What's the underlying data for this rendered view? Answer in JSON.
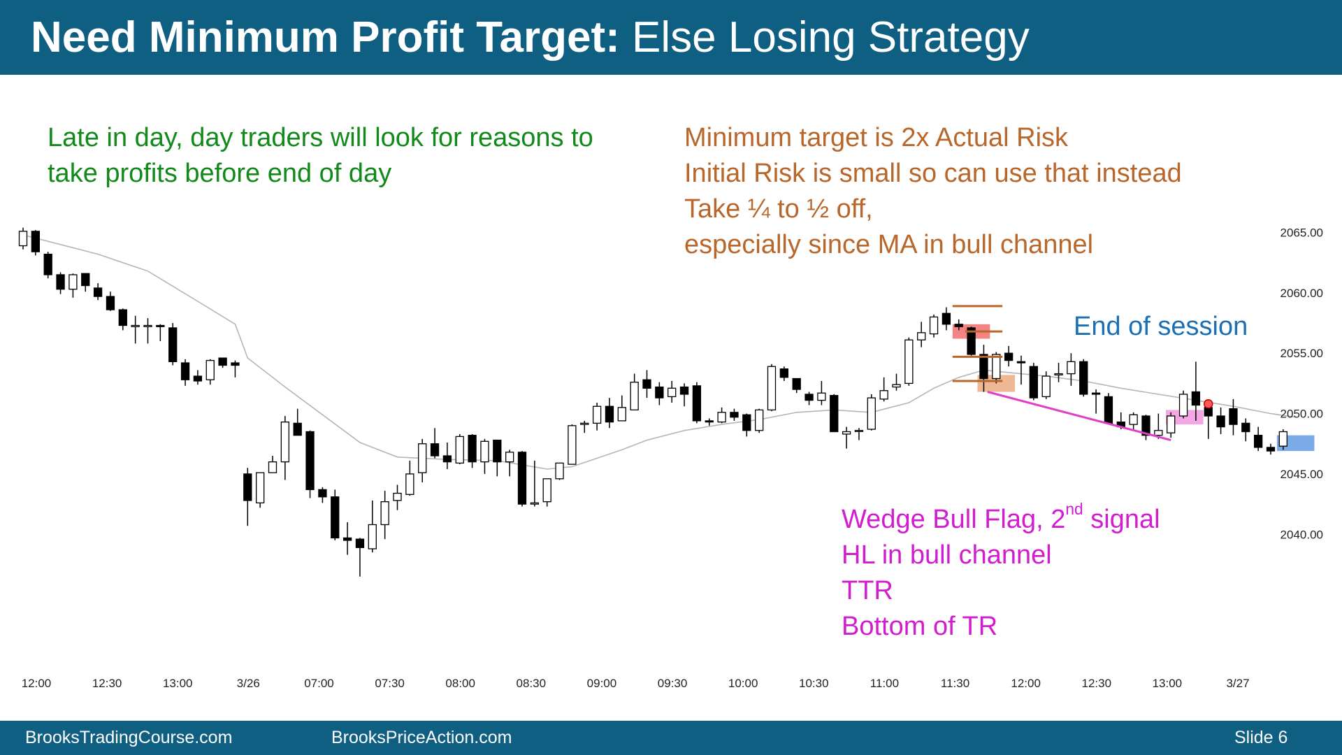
{
  "header": {
    "title_bold": "Need Minimum Profit Target:",
    "title_rest": "Else Losing Strategy"
  },
  "notes": {
    "green": [
      "Late in day, day traders will look for reasons to",
      "take profits before end of day"
    ],
    "brown": [
      "Minimum target is 2x Actual Risk",
      "Initial Risk is small so can use that instead",
      "Take ¼ to ½ off,",
      "especially since MA in bull channel"
    ],
    "blue": "End of session",
    "magenta": {
      "line1_pre": "Wedge Bull Flag, 2",
      "line1_sup": "nd",
      "line1_post": " signal",
      "lines": [
        "HL in bull channel",
        "TTR",
        "Bottom of TR"
      ]
    }
  },
  "footer": {
    "left": "BrooksTradingCourse.com",
    "center": "BrooksPriceAction.com",
    "right": "Slide  6"
  },
  "colors": {
    "header_bg": "#0f5f82",
    "green_text": "#118a1a",
    "brown_text": "#b8662a",
    "blue_text": "#1a6fb5",
    "magenta_text": "#d21ccf",
    "moving_average": "#b5b5b5",
    "bear_candle": "#000000",
    "bull_candle": "#ffffff",
    "red_box": "#f05a5a",
    "orange_box": "#e8a070",
    "pink_box": "#f08ad8",
    "blue_box": "#4d8ee0",
    "wedge_line": "#e040c8",
    "target_lines": "#b8662a"
  },
  "chart_data": {
    "type": "candlestick",
    "ylim": [
      2035.5,
      2067.0
    ],
    "y_ticks": [
      "2065.00",
      "2060.00",
      "2055.00",
      "2050.00",
      "2045.00",
      "2040.00"
    ],
    "x_ticks": [
      "12:00",
      "12:30",
      "13:00",
      "3/26",
      "07:00",
      "07:30",
      "08:00",
      "08:30",
      "09:00",
      "09:30",
      "10:00",
      "10:30",
      "11:00",
      "11:30",
      "12:00",
      "12:30",
      "13:00",
      "3/27"
    ],
    "candles": [
      [
        2063.9,
        2065.4,
        2063.6,
        2065.1
      ],
      [
        2065.1,
        2065.2,
        2063.1,
        2063.4
      ],
      [
        2063.2,
        2063.4,
        2061.2,
        2061.5
      ],
      [
        2061.5,
        2061.7,
        2059.9,
        2060.3
      ],
      [
        2060.3,
        2061.6,
        2059.6,
        2061.5
      ],
      [
        2061.6,
        2061.6,
        2060.1,
        2060.6
      ],
      [
        2060.4,
        2060.8,
        2059.4,
        2059.7
      ],
      [
        2059.7,
        2060.1,
        2058.5,
        2058.6
      ],
      [
        2058.6,
        2058.7,
        2056.9,
        2057.3
      ],
      [
        2057.2,
        2058.1,
        2055.8,
        2057.3
      ],
      [
        2057.2,
        2057.9,
        2055.8,
        2057.3
      ],
      [
        2057.3,
        2057.4,
        2056.0,
        2057.2
      ],
      [
        2057.1,
        2057.5,
        2054.0,
        2054.3
      ],
      [
        2054.2,
        2054.5,
        2052.3,
        2052.8
      ],
      [
        2053.1,
        2053.6,
        2052.4,
        2052.7
      ],
      [
        2052.8,
        2054.5,
        2052.4,
        2054.4
      ],
      [
        2054.6,
        2054.6,
        2053.8,
        2054.0
      ],
      [
        2054.2,
        2054.4,
        2053.0,
        2054.0
      ],
      [
        2045.0,
        2045.5,
        2040.7,
        2042.8
      ],
      [
        2042.6,
        2045.1,
        2042.2,
        2045.1
      ],
      [
        2045.1,
        2046.5,
        2045.1,
        2046.0
      ],
      [
        2046.0,
        2049.8,
        2044.5,
        2049.3
      ],
      [
        2049.2,
        2050.4,
        2048.2,
        2048.2
      ],
      [
        2048.5,
        2048.6,
        2043.0,
        2043.7
      ],
      [
        2043.7,
        2043.9,
        2042.6,
        2043.1
      ],
      [
        2043.1,
        2043.7,
        2039.5,
        2039.7
      ],
      [
        2039.7,
        2041.0,
        2038.3,
        2039.5
      ],
      [
        2039.6,
        2039.7,
        2036.5,
        2038.9
      ],
      [
        2038.8,
        2042.8,
        2038.5,
        2040.8
      ],
      [
        2040.8,
        2043.6,
        2039.6,
        2042.7
      ],
      [
        2042.8,
        2044.1,
        2042.0,
        2043.4
      ],
      [
        2043.3,
        2046.1,
        2043.2,
        2045.0
      ],
      [
        2045.1,
        2047.9,
        2044.3,
        2047.5
      ],
      [
        2047.5,
        2048.8,
        2046.3,
        2046.5
      ],
      [
        2046.5,
        2047.6,
        2045.4,
        2046.0
      ],
      [
        2045.9,
        2048.3,
        2045.8,
        2048.1
      ],
      [
        2048.2,
        2048.3,
        2045.5,
        2046.0
      ],
      [
        2046.0,
        2047.9,
        2045.0,
        2047.7
      ],
      [
        2047.8,
        2047.8,
        2044.8,
        2046.0
      ],
      [
        2046.0,
        2047.0,
        2044.8,
        2046.8
      ],
      [
        2046.8,
        2046.9,
        2042.3,
        2042.5
      ],
      [
        2042.5,
        2046.1,
        2042.3,
        2042.6
      ],
      [
        2042.7,
        2044.3,
        2042.3,
        2044.6
      ],
      [
        2044.6,
        2045.7,
        2044.5,
        2045.9
      ],
      [
        2045.8,
        2049.1,
        2045.8,
        2049.0
      ],
      [
        2049.1,
        2049.4,
        2048.4,
        2049.2
      ],
      [
        2049.2,
        2050.9,
        2048.6,
        2050.6
      ],
      [
        2050.6,
        2051.3,
        2048.8,
        2049.3
      ],
      [
        2049.4,
        2051.5,
        2049.4,
        2050.5
      ],
      [
        2050.3,
        2053.3,
        2050.4,
        2052.6
      ],
      [
        2052.8,
        2053.6,
        2051.3,
        2052.1
      ],
      [
        2052.2,
        2052.6,
        2050.7,
        2051.3
      ],
      [
        2051.4,
        2052.7,
        2050.9,
        2052.1
      ],
      [
        2052.2,
        2052.5,
        2050.6,
        2051.6
      ],
      [
        2052.3,
        2052.6,
        2049.2,
        2049.4
      ],
      [
        2049.4,
        2049.6,
        2049.0,
        2049.3
      ],
      [
        2049.3,
        2050.5,
        2049.2,
        2050.1
      ],
      [
        2050.1,
        2050.4,
        2049.4,
        2049.7
      ],
      [
        2049.9,
        2050.0,
        2048.1,
        2048.6
      ],
      [
        2048.6,
        2050.4,
        2048.4,
        2050.3
      ],
      [
        2050.3,
        2054.1,
        2050.2,
        2053.9
      ],
      [
        2053.7,
        2053.9,
        2052.7,
        2053.0
      ],
      [
        2052.9,
        2052.9,
        2051.7,
        2052.0
      ],
      [
        2051.6,
        2051.8,
        2050.7,
        2051.1
      ],
      [
        2051.1,
        2052.7,
        2050.7,
        2051.7
      ],
      [
        2051.5,
        2051.6,
        2048.7,
        2048.5
      ],
      [
        2048.3,
        2048.9,
        2047.1,
        2048.5
      ],
      [
        2048.6,
        2048.8,
        2047.8,
        2048.6
      ],
      [
        2048.7,
        2051.6,
        2048.6,
        2051.3
      ],
      [
        2051.2,
        2053.0,
        2051.0,
        2051.9
      ],
      [
        2052.2,
        2053.3,
        2051.9,
        2052.4
      ],
      [
        2052.5,
        2056.3,
        2052.3,
        2056.1
      ],
      [
        2056.1,
        2057.6,
        2055.5,
        2056.7
      ],
      [
        2056.6,
        2058.2,
        2056.3,
        2058.0
      ],
      [
        2058.3,
        2058.8,
        2056.9,
        2057.4
      ],
      [
        2057.4,
        2057.8,
        2056.9,
        2057.2
      ],
      [
        2057.1,
        2057.2,
        2054.8,
        2054.9
      ],
      [
        2054.9,
        2055.7,
        2051.8,
        2052.9
      ],
      [
        2052.9,
        2055.1,
        2052.5,
        2054.9
      ],
      [
        2055.0,
        2055.6,
        2053.9,
        2054.4
      ],
      [
        2054.3,
        2054.8,
        2052.4,
        2054.2
      ],
      [
        2053.9,
        2054.2,
        2051.1,
        2051.3
      ],
      [
        2051.4,
        2053.5,
        2051.2,
        2053.1
      ],
      [
        2053.2,
        2054.2,
        2052.6,
        2053.3
      ],
      [
        2053.3,
        2055.0,
        2052.3,
        2054.3
      ],
      [
        2054.3,
        2054.5,
        2051.4,
        2051.6
      ],
      [
        2051.7,
        2052.0,
        2050.0,
        2051.6
      ],
      [
        2051.4,
        2051.7,
        2049.1,
        2049.2
      ],
      [
        2049.3,
        2050.1,
        2048.7,
        2048.9
      ],
      [
        2049.1,
        2050.1,
        2048.7,
        2049.9
      ],
      [
        2049.8,
        2049.9,
        2047.8,
        2048.2
      ],
      [
        2048.2,
        2050.0,
        2047.9,
        2048.6
      ],
      [
        2048.4,
        2050.1,
        2048.0,
        2049.8
      ],
      [
        2049.8,
        2051.9,
        2049.6,
        2051.6
      ],
      [
        2051.8,
        2054.3,
        2049.4,
        2050.7
      ],
      [
        2050.5,
        2050.9,
        2047.9,
        2049.8
      ],
      [
        2049.8,
        2050.5,
        2048.3,
        2048.9
      ],
      [
        2050.4,
        2051.2,
        2048.2,
        2049.1
      ],
      [
        2049.2,
        2049.6,
        2047.7,
        2048.5
      ],
      [
        2048.2,
        2048.9,
        2046.9,
        2047.2
      ],
      [
        2047.2,
        2047.5,
        2046.6,
        2046.9
      ],
      [
        2047.3,
        2048.7,
        2047.0,
        2048.5
      ]
    ],
    "moving_average": [
      [
        0,
        2064.8
      ],
      [
        3,
        2064.0
      ],
      [
        6,
        2063.2
      ],
      [
        10,
        2061.8
      ],
      [
        14,
        2059.3
      ],
      [
        17,
        2057.4
      ],
      [
        18,
        2054.6
      ],
      [
        21,
        2052.2
      ],
      [
        24,
        2049.9
      ],
      [
        27,
        2047.6
      ],
      [
        30,
        2046.4
      ],
      [
        34,
        2046.2
      ],
      [
        38,
        2046.1
      ],
      [
        42,
        2045.4
      ],
      [
        44,
        2045.6
      ],
      [
        46,
        2046.3
      ],
      [
        48,
        2047.0
      ],
      [
        50,
        2047.8
      ],
      [
        53,
        2048.6
      ],
      [
        56,
        2049.1
      ],
      [
        59,
        2049.5
      ],
      [
        62,
        2050.1
      ],
      [
        65,
        2050.3
      ],
      [
        68,
        2050.1
      ],
      [
        71,
        2050.9
      ],
      [
        73,
        2052.1
      ],
      [
        75,
        2053.0
      ],
      [
        77,
        2053.6
      ],
      [
        79,
        2053.4
      ],
      [
        82,
        2053.1
      ],
      [
        85,
        2052.7
      ],
      [
        88,
        2052.1
      ],
      [
        91,
        2051.6
      ],
      [
        94,
        2051.1
      ],
      [
        97,
        2050.6
      ],
      [
        100,
        2050.0
      ],
      [
        102,
        2049.7
      ]
    ],
    "boxes": [
      {
        "color": "red",
        "x0": 74.5,
        "x1": 77.5,
        "y0": 2056.2,
        "y1": 2057.4
      },
      {
        "color": "orange",
        "x0": 76.5,
        "x1": 79.5,
        "y0": 2051.8,
        "y1": 2053.2
      },
      {
        "color": "pink",
        "x0": 91.6,
        "x1": 94.6,
        "y0": 2049.1,
        "y1": 2050.3
      },
      {
        "color": "blue",
        "x0": 100.5,
        "x1": 103.5,
        "y0": 2046.9,
        "y1": 2048.2
      }
    ],
    "target_lines": [
      {
        "x0": 74.5,
        "x1": 78.5,
        "y": 2058.9
      },
      {
        "x0": 75.5,
        "x1": 78.5,
        "y": 2056.8
      },
      {
        "x0": 74.5,
        "x1": 78.5,
        "y": 2054.7
      },
      {
        "x0": 74.5,
        "x1": 78.5,
        "y": 2052.7
      }
    ],
    "wedge_line": [
      [
        77.3,
        2051.8
      ],
      [
        92.0,
        2047.8
      ]
    ],
    "dot": [
      95.0,
      2050.8
    ]
  }
}
